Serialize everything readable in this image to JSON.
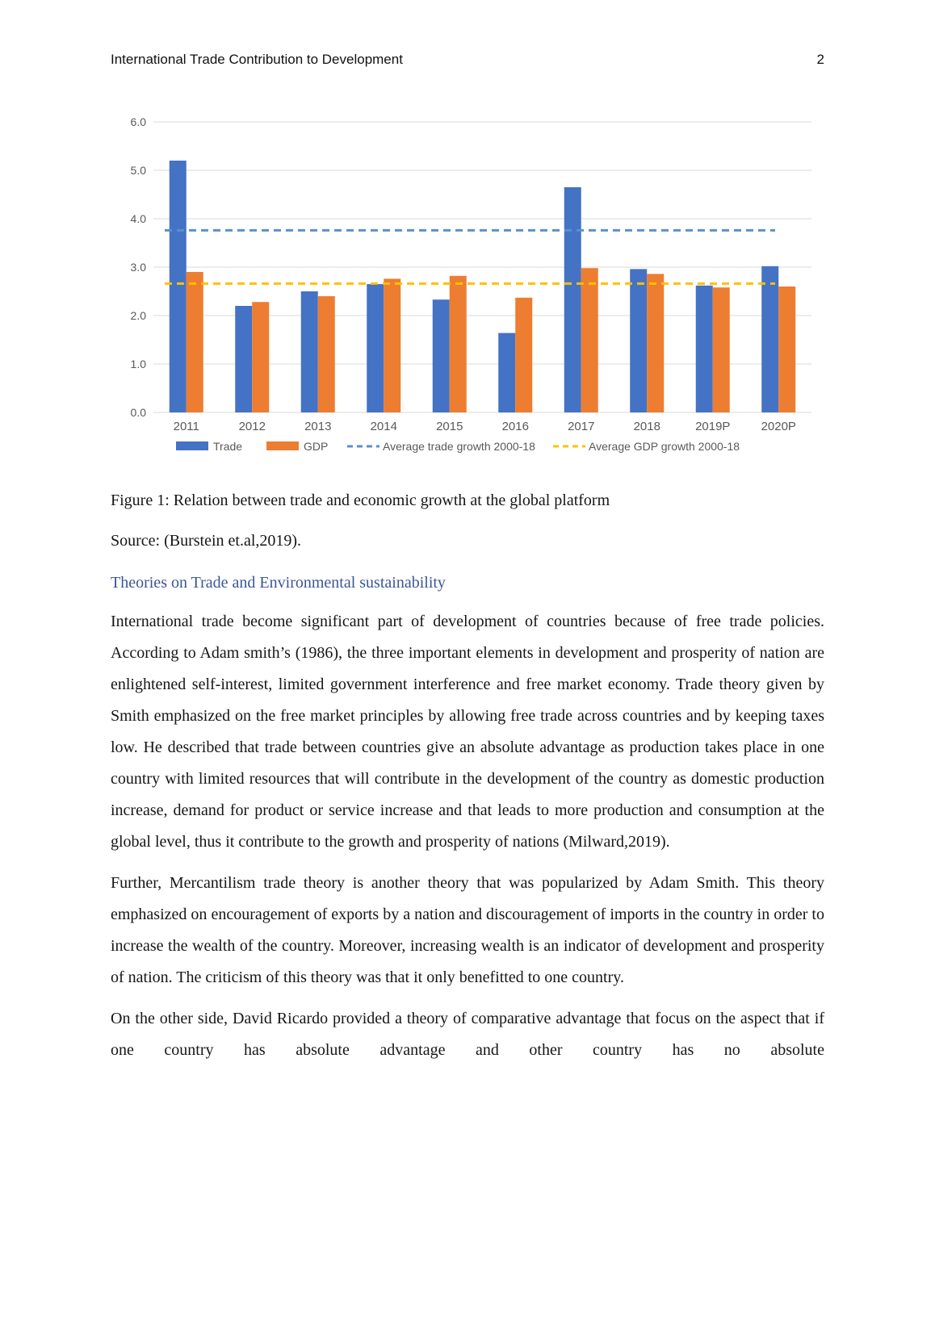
{
  "page": {
    "header_title": "International Trade Contribution to Development",
    "page_number": "2"
  },
  "figure": {
    "caption": "Figure 1:  Relation between trade and economic growth at the global platform",
    "source": "Source: (Burstein et.al,2019)."
  },
  "section": {
    "heading": "Theories on Trade and Environmental sustainability"
  },
  "paragraphs": [
    "International trade become significant part of development of countries because of free trade policies. According to Adam smith’s (1986), the three important elements in development and prosperity of nation are enlightened self-interest, limited government interference and free market economy.  Trade theory given by Smith emphasized on the free market principles by allowing free trade across countries and by keeping taxes low.  He described that  trade between countries give an absolute advantage as production takes place in one country with limited resources that will contribute in the development of the country as domestic production increase, demand for product or service increase and   that leads to more production and consumption at the global level, thus  it contribute to the growth and prosperity of nations (Milward,2019).",
    "Further, Mercantilism trade theory is another theory that was popularized by Adam Smith. This theory emphasized on encouragement of exports by a nation and discouragement of imports in the country in order to increase the wealth of the country.  Moreover, increasing wealth is an indicator of development and prosperity of nation. The criticism of this theory was that it only benefitted to one country.",
    "On the other side, David Ricardo provided a theory of comparative advantage that focus on the aspect that if one country has absolute advantage and other country has no absolute"
  ],
  "chart_data": {
    "type": "bar",
    "title": "",
    "xlabel": "",
    "ylabel": "",
    "categories": [
      "2011",
      "2012",
      "2013",
      "2014",
      "2015",
      "2016",
      "2017",
      "2018",
      "2019P",
      "2020P"
    ],
    "series": [
      {
        "name": "Trade",
        "color": "#4472C4",
        "values": [
          5.2,
          2.2,
          2.5,
          2.65,
          2.33,
          1.64,
          4.65,
          2.96,
          2.62,
          3.02
        ]
      },
      {
        "name": "GDP",
        "color": "#ED7D31",
        "values": [
          2.9,
          2.28,
          2.4,
          2.76,
          2.82,
          2.37,
          2.98,
          2.86,
          2.58,
          2.6
        ]
      }
    ],
    "reference_lines": [
      {
        "name": "Average trade growth 2000-18",
        "value": 3.76,
        "color": "#5b8fd0",
        "style": "dashed"
      },
      {
        "name": "Average GDP growth 2000-18",
        "value": 2.66,
        "color": "#FFC000",
        "style": "dashed"
      }
    ],
    "ylim": [
      0,
      6
    ],
    "ytick_step": 1,
    "grid": true,
    "legend_position": "bottom",
    "axis_text_color": "#595959",
    "grid_color": "#D9D9D9"
  }
}
